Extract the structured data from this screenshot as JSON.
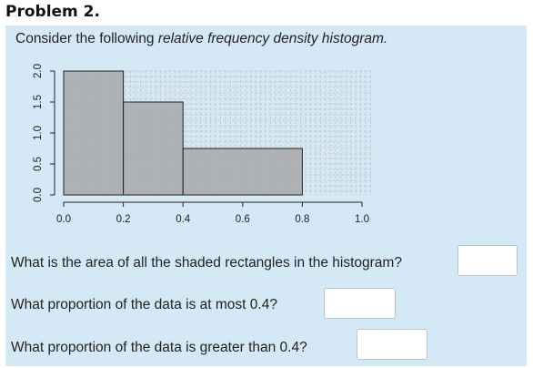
{
  "header": {
    "title": "Problem 2."
  },
  "prompt": {
    "intro_plain": "Consider the following ",
    "intro_italic": "relative frequency density histogram."
  },
  "chart_data": {
    "type": "bar",
    "title": "",
    "xlabel": "",
    "ylabel": "",
    "bins": [
      {
        "x_start": 0.0,
        "x_end": 0.2,
        "density": 2.0
      },
      {
        "x_start": 0.2,
        "x_end": 0.4,
        "density": 1.5
      },
      {
        "x_start": 0.4,
        "x_end": 0.8,
        "density": 0.75
      }
    ],
    "xlim": [
      0.0,
      1.0
    ],
    "ylim": [
      0.0,
      2.0
    ],
    "x_ticks": [
      "0.0",
      "0.2",
      "0.4",
      "0.6",
      "0.8",
      "1.0"
    ],
    "y_ticks": [
      "0.0",
      "0.5",
      "1.0",
      "1.5",
      "2.0"
    ],
    "grid": true,
    "bar_color": "#a8a8a8"
  },
  "questions": [
    {
      "text": "What is the area of all the shaded rectangles in the histogram?",
      "value": "",
      "placeholder": ""
    },
    {
      "text": "What proportion of the data is at most 0.4?",
      "value": "",
      "placeholder": ""
    },
    {
      "text": "What proportion of the data is greater than 0.4?",
      "value": "",
      "placeholder": ""
    }
  ]
}
